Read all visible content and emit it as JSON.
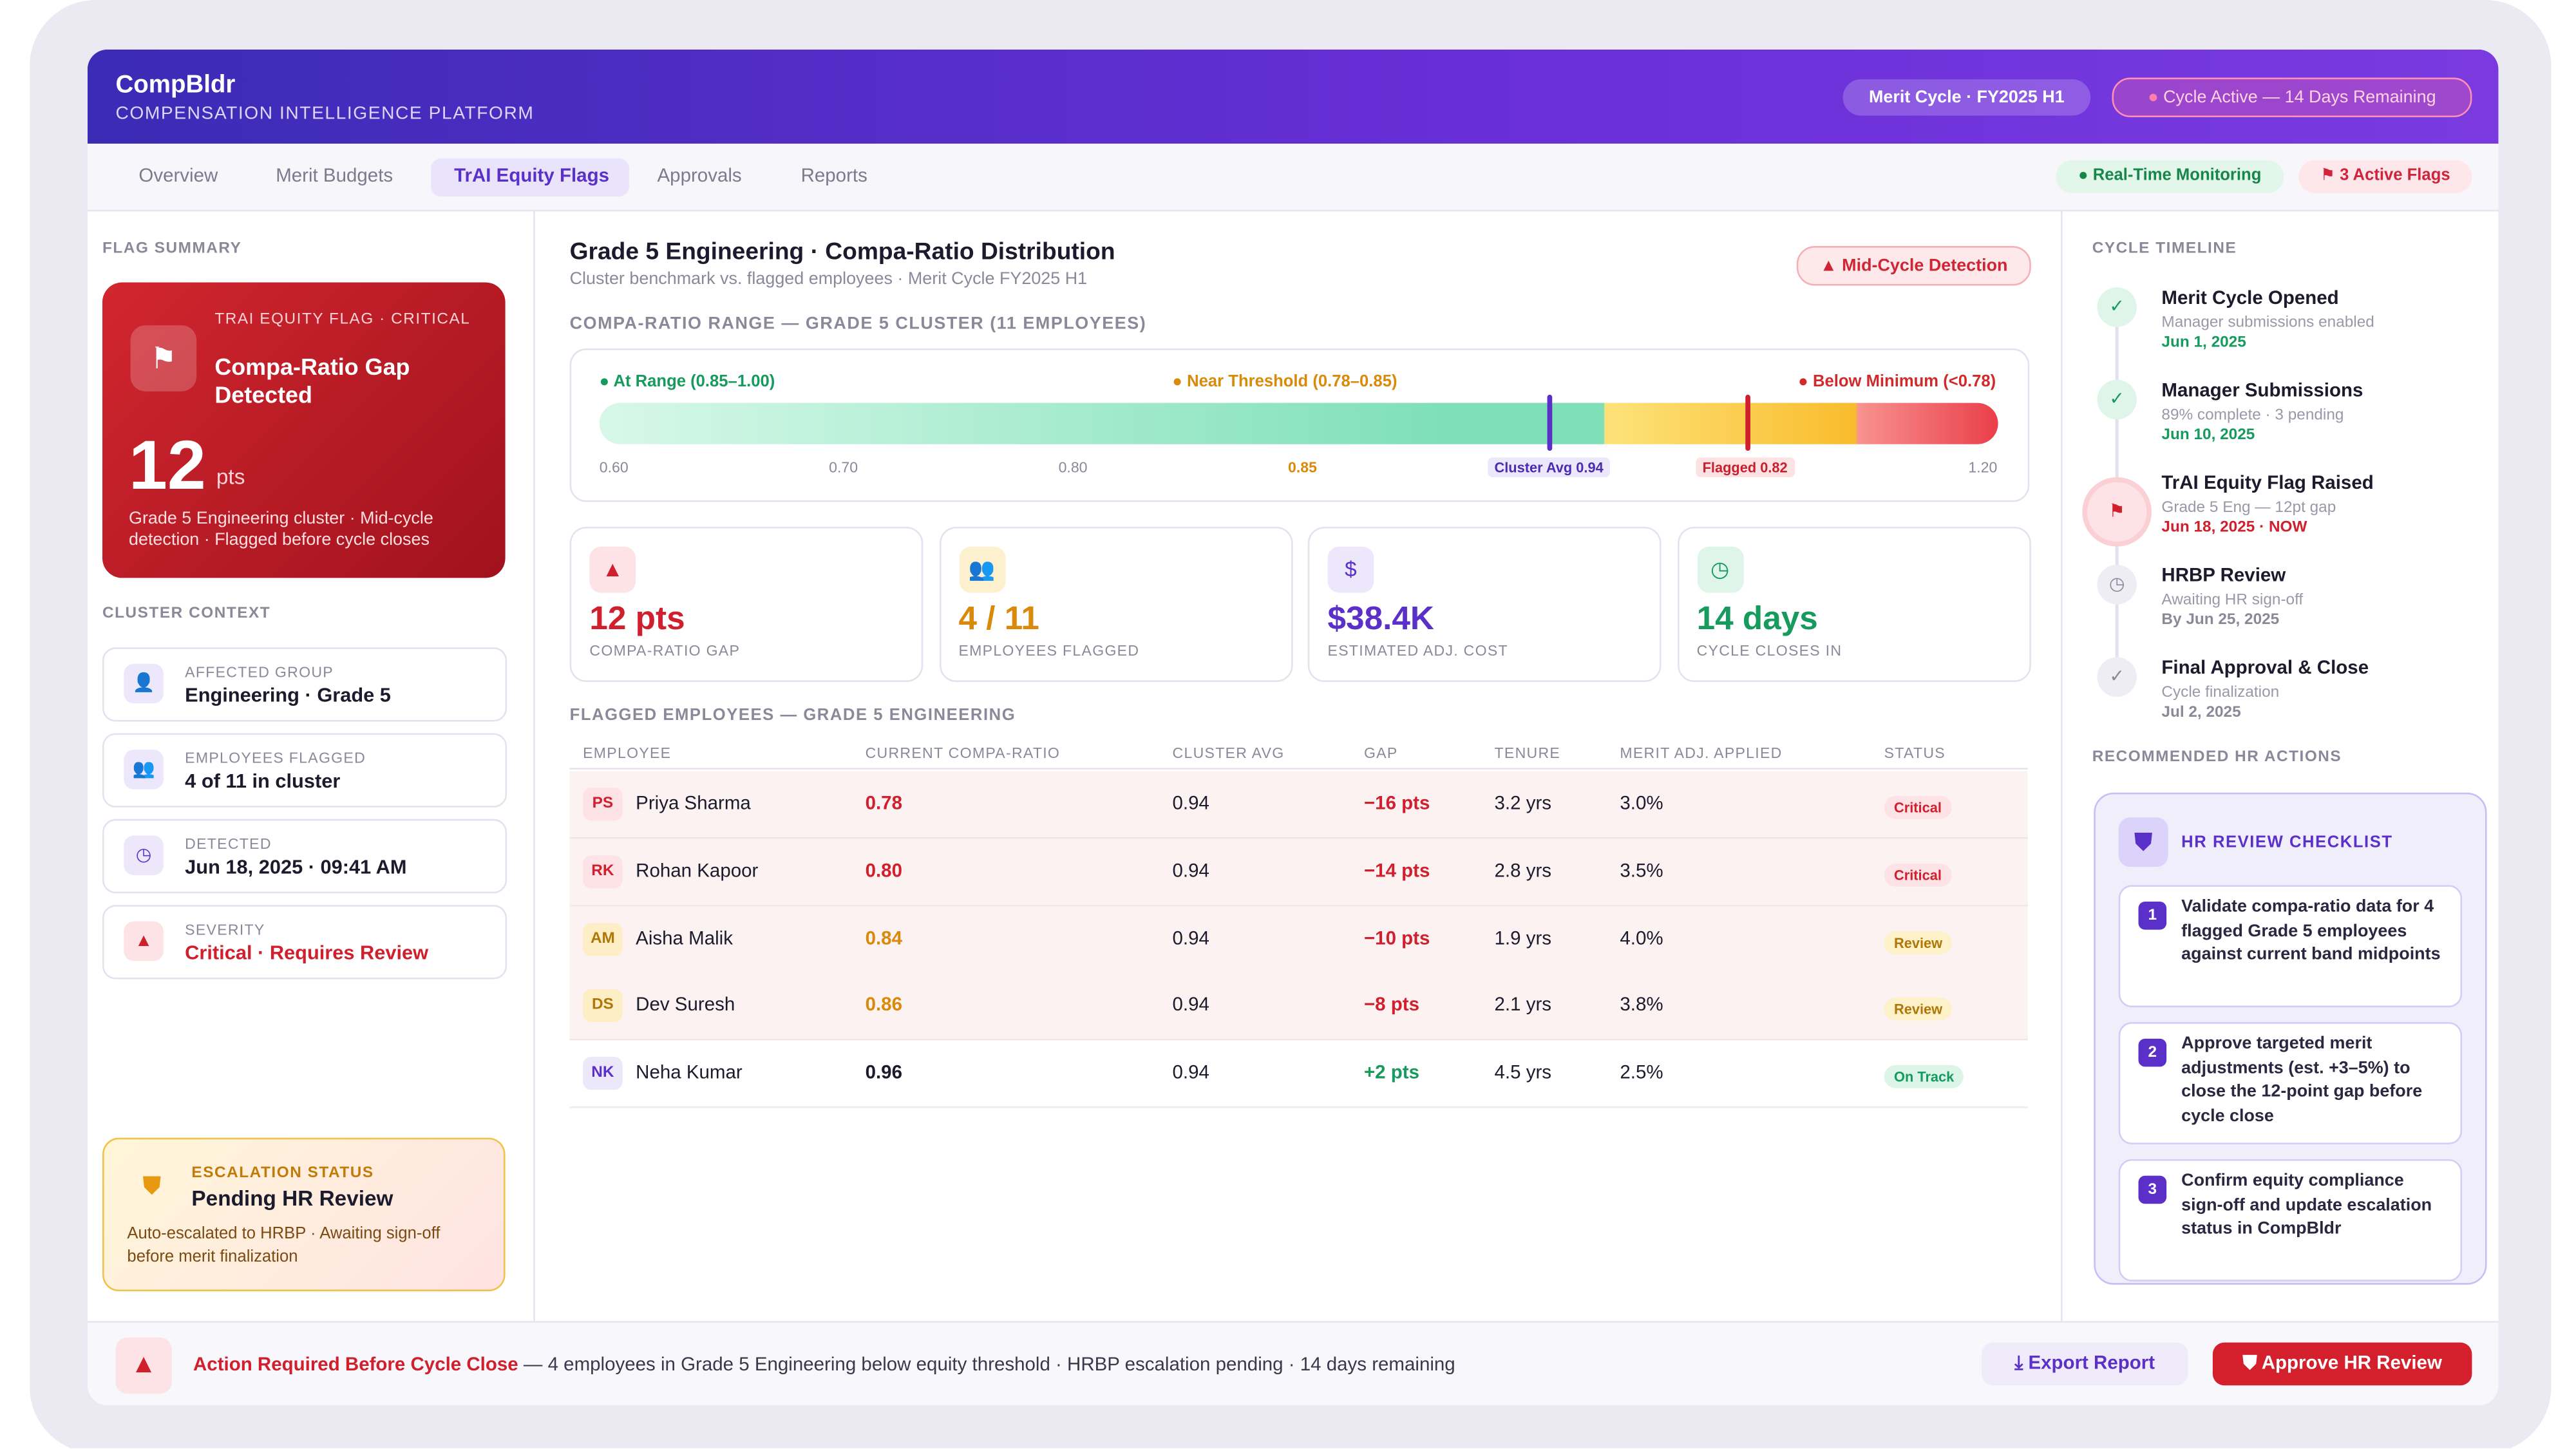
{
  "header": {
    "brand": "CompBldr",
    "subtitle": "COMPENSATION INTELLIGENCE PLATFORM",
    "cycle": "Merit Cycle · FY2025 H1",
    "status": "Cycle Active — 14 Days Remaining"
  },
  "nav": {
    "tabs": [
      "Overview",
      "Merit Budgets",
      "TrAI Equity Flags",
      "Approvals",
      "Reports"
    ],
    "monitoring": "Real-Time Monitoring",
    "flags": "3 Active Flags"
  },
  "flag_summary": {
    "heading": "FLAG SUMMARY",
    "eyebrow": "TRAI EQUITY FLAG · CRITICAL",
    "title": "Compa-Ratio Gap Detected",
    "value": "12",
    "unit": "pts",
    "note": "Grade 5 Engineering cluster · Mid-cycle detection · Flagged before cycle closes"
  },
  "cluster_context": {
    "heading": "CLUSTER CONTEXT",
    "items": [
      {
        "label": "AFFECTED GROUP",
        "value": "Engineering · Grade 5"
      },
      {
        "label": "EMPLOYEES FLAGGED",
        "value": "4 of 11 in cluster"
      },
      {
        "label": "DETECTED",
        "value": "Jun 18, 2025 · 09:41 AM"
      },
      {
        "label": "SEVERITY",
        "value": "Critical · Requires Review"
      }
    ]
  },
  "escalation": {
    "label": "ESCALATION STATUS",
    "title": "Pending HR Review",
    "note": "Auto-escalated to HRBP · Awaiting sign-off before merit finalization"
  },
  "main": {
    "title": "Grade 5 Engineering · Compa-Ratio Distribution",
    "subtitle": "Cluster benchmark vs. flagged employees · Merit Cycle FY2025 H1",
    "badge": "Mid-Cycle Detection",
    "range_heading": "COMPA-RATIO RANGE — GRADE 5 CLUSTER (11 EMPLOYEES)",
    "legend": [
      "At Range (0.85–1.00)",
      "Near Threshold (0.78–0.85)",
      "Below Minimum (<0.78)"
    ],
    "scale": [
      "0.60",
      "0.70",
      "0.80",
      "0.85",
      "1.20"
    ],
    "markers": [
      "Cluster Avg 0.94",
      "Flagged 0.82"
    ],
    "kpis": [
      {
        "value": "12 pts",
        "label": "COMPA-RATIO GAP"
      },
      {
        "value": "4 / 11",
        "label": "EMPLOYEES FLAGGED"
      },
      {
        "value": "$38.4K",
        "label": "ESTIMATED ADJ. COST"
      },
      {
        "value": "14 days",
        "label": "CYCLE CLOSES IN"
      }
    ],
    "table": {
      "heading": "FLAGGED EMPLOYEES — GRADE 5 ENGINEERING",
      "columns": [
        "EMPLOYEE",
        "CURRENT COMPA-RATIO",
        "CLUSTER AVG",
        "GAP",
        "TENURE",
        "MERIT ADJ. APPLIED",
        "STATUS"
      ],
      "rows": [
        [
          "PS",
          "Priya Sharma",
          "0.78",
          "0.94",
          "−16 pts",
          "3.2 yrs",
          "3.0%",
          "Critical"
        ],
        [
          "RK",
          "Rohan Kapoor",
          "0.80",
          "0.94",
          "−14 pts",
          "2.8 yrs",
          "3.5%",
          "Critical"
        ],
        [
          "AM",
          "Aisha Malik",
          "0.84",
          "0.94",
          "−10 pts",
          "1.9 yrs",
          "4.0%",
          "Review"
        ],
        [
          "DS",
          "Dev Suresh",
          "0.86",
          "0.94",
          "−8 pts",
          "2.1 yrs",
          "3.8%",
          "Review"
        ],
        [
          "NK",
          "Neha Kumar",
          "0.96",
          "0.94",
          "+2 pts",
          "4.5 yrs",
          "2.5%",
          "On Track"
        ]
      ]
    }
  },
  "timeline": {
    "heading": "CYCLE TIMELINE",
    "events": [
      {
        "title": "Merit Cycle Opened",
        "detail": "Manager submissions enabled",
        "date": "Jun 1, 2025"
      },
      {
        "title": "Manager Submissions",
        "detail": "89% complete · 3 pending",
        "date": "Jun 10, 2025"
      },
      {
        "title": "TrAI Equity Flag Raised",
        "detail": "Grade 5 Eng — 12pt gap",
        "date": "Jun 18, 2025 · NOW"
      },
      {
        "title": "HRBP Review",
        "detail": "Awaiting HR sign-off",
        "date": "By Jun 25, 2025"
      },
      {
        "title": "Final Approval & Close",
        "detail": "Cycle finalization",
        "date": "Jul 2, 2025"
      }
    ]
  },
  "actions": {
    "heading": "RECOMMENDED HR ACTIONS",
    "checklist_title": "HR REVIEW CHECKLIST",
    "items": [
      {
        "n": "1",
        "text": "Validate compa-ratio data for 4 flagged Grade 5 employees against current band midpoints"
      },
      {
        "n": "2",
        "text": "Approve targeted merit adjustments (est. +3–5%) to close the 12-point gap before cycle close"
      },
      {
        "n": "3",
        "text": "Confirm equity compliance sign-off and update escalation status in CompBldr"
      }
    ]
  },
  "footer": {
    "alert_title": "Action Required Before Cycle Close",
    "alert_text": "— 4 employees in Grade 5 Engineering below equity threshold · HRBP escalation pending · 14 days remaining",
    "export": "Export Report",
    "approve": "Approve HR Review"
  }
}
